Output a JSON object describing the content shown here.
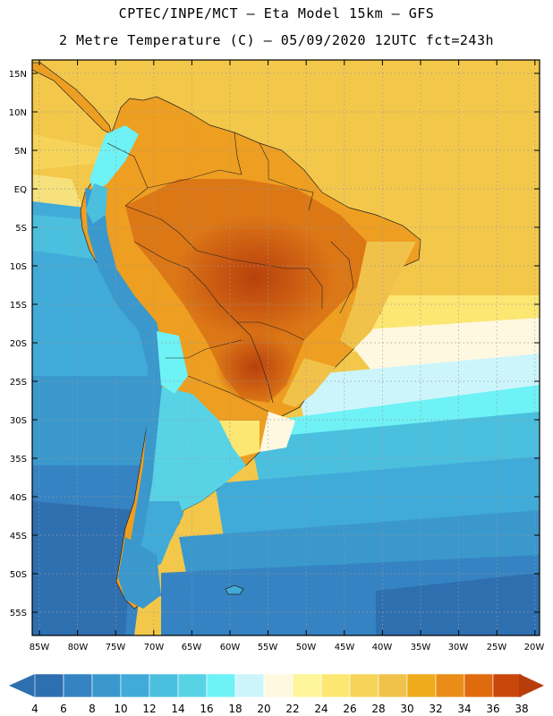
{
  "header": {
    "line1": "CPTEC/INPE/MCT –  Eta Model 15km – GFS",
    "line2": "2 Metre Temperature (C) – 05/09/2020 12UTC fct=243h"
  },
  "map": {
    "lat_labels": [
      "15N",
      "10N",
      "5N",
      "EQ",
      "5S",
      "10S",
      "15S",
      "20S",
      "25S",
      "30S",
      "35S",
      "40S",
      "45S",
      "50S",
      "55S"
    ],
    "lon_labels": [
      "85W",
      "80W",
      "75W",
      "70W",
      "65W",
      "60W",
      "55W",
      "50W",
      "45W",
      "40W",
      "35W",
      "30W",
      "25W",
      "20W"
    ]
  },
  "colorbar": {
    "labels": [
      "4",
      "6",
      "8",
      "10",
      "12",
      "14",
      "16",
      "18",
      "20",
      "22",
      "24",
      "26",
      "28",
      "30",
      "32",
      "34",
      "36",
      "38"
    ],
    "colors": [
      "#2e6fb0",
      "#3583c2",
      "#3a98cd",
      "#40abd8",
      "#4bbfde",
      "#58d3e6",
      "#6ef2f5",
      "#ccf5fb",
      "#fff8e0",
      "#fff59a",
      "#fce773",
      "#f6d45a",
      "#f1c24a",
      "#eeab1b",
      "#ea8d18",
      "#e06a0e",
      "#c9470b",
      "#b83d0d"
    ]
  }
}
